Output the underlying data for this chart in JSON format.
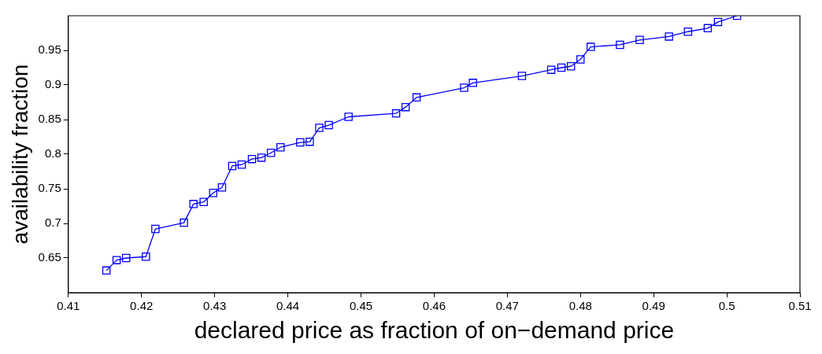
{
  "chart_data": {
    "type": "line",
    "xlabel": "declared price as fraction of on−demand price",
    "ylabel": "availability fraction",
    "xlim": [
      0.41,
      0.51
    ],
    "xticks": [
      0.41,
      0.42,
      0.43,
      0.44,
      0.45,
      0.46,
      0.47,
      0.48,
      0.49,
      0.5,
      0.51
    ],
    "ylim": [
      0.6,
      1.0
    ],
    "yticks": [
      0.65,
      0.7,
      0.75,
      0.8,
      0.85,
      0.9,
      0.95
    ],
    "grid": false,
    "legend": false,
    "marker": "square",
    "line_style": "solid",
    "x": [
      0.4152,
      0.4166,
      0.4179,
      0.4206,
      0.4219,
      0.4258,
      0.4271,
      0.4285,
      0.4298,
      0.431,
      0.4324,
      0.4337,
      0.4351,
      0.4364,
      0.4377,
      0.439,
      0.4417,
      0.443,
      0.4443,
      0.4456,
      0.4483,
      0.4548,
      0.4561,
      0.4576,
      0.4641,
      0.4653,
      0.472,
      0.476,
      0.4774,
      0.4787,
      0.48,
      0.4814,
      0.4854,
      0.4881,
      0.4921,
      0.4947,
      0.4974,
      0.4988,
      0.5014
    ],
    "series": [
      {
        "color": "#0000ff",
        "values": [
          0.632,
          0.647,
          0.65,
          0.652,
          0.692,
          0.701,
          0.728,
          0.731,
          0.744,
          0.752,
          0.783,
          0.785,
          0.793,
          0.795,
          0.802,
          0.81,
          0.817,
          0.818,
          0.838,
          0.842,
          0.854,
          0.859,
          0.868,
          0.882,
          0.896,
          0.903,
          0.913,
          0.922,
          0.925,
          0.927,
          0.937,
          0.955,
          0.958,
          0.965,
          0.97,
          0.977,
          0.982,
          0.991,
          1.0
        ]
      }
    ]
  }
}
